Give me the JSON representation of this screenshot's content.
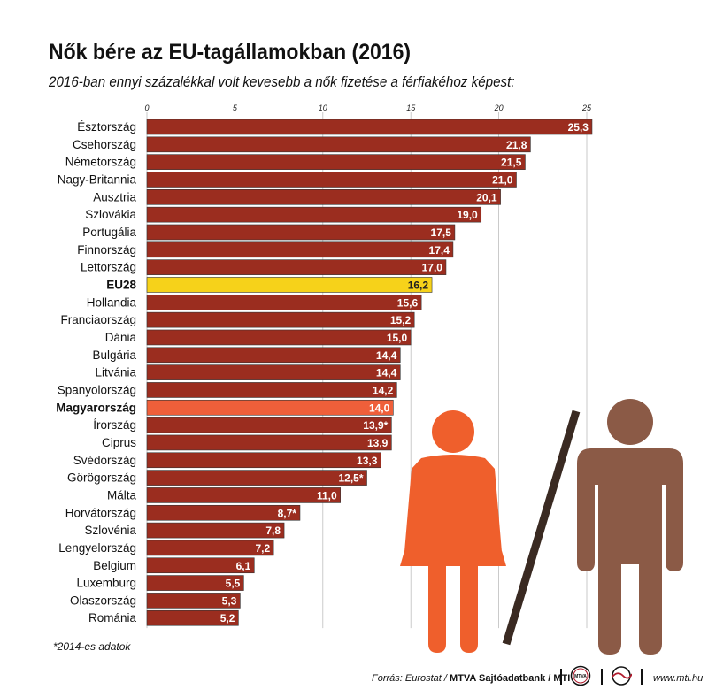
{
  "title": "Nők bére az EU-tagállamokban (2016)",
  "subtitle": "2016-ban ennyi százalékkal volt kevesebb a nők fizetése a férfiakéhoz képest:",
  "footnote": "*2014-es adatok",
  "footer": {
    "source_prefix": "Forrás: Eurostat / ",
    "source_bold": "MTVA Sajtóadatbank / MTI",
    "logo1_text": "MTVA",
    "website": "www.mti.hu"
  },
  "colors": {
    "bar": "#9b2d1f",
    "eu28": "#f6d21a",
    "hungary": "#ef5f3a",
    "woman": "#ef5f2c",
    "man": "#8b5a46",
    "divider": "#3a2a22"
  },
  "icons": [
    "woman-icon",
    "man-icon"
  ],
  "chart_data": {
    "type": "bar",
    "orientation": "horizontal",
    "title": "Nők bére az EU-tagállamokban (2016)",
    "subtitle": "2016-ban ennyi százalékkal volt kevesebb a nők fizetése a férfiakéhoz képest:",
    "xlim": [
      0,
      25
    ],
    "xticks": [
      0,
      5,
      10,
      15,
      20,
      25
    ],
    "grid": true,
    "categories": [
      "Észtország",
      "Csehország",
      "Németország",
      "Nagy-Britannia",
      "Ausztria",
      "Szlovákia",
      "Portugália",
      "Finnország",
      "Lettország",
      "EU28",
      "Hollandia",
      "Franciaország",
      "Dánia",
      "Bulgária",
      "Litvánia",
      "Spanyolország",
      "Magyarország",
      "Írország",
      "Ciprus",
      "Svédország",
      "Görögország",
      "Málta",
      "Horvátország",
      "Szlovénia",
      "Lengyelország",
      "Belgium",
      "Luxemburg",
      "Olaszország",
      "Románia"
    ],
    "values": [
      25.3,
      21.8,
      21.5,
      21.0,
      20.1,
      19.0,
      17.5,
      17.4,
      17.0,
      16.2,
      15.6,
      15.2,
      15.0,
      14.4,
      14.4,
      14.2,
      14.0,
      13.9,
      13.9,
      13.3,
      12.5,
      11.0,
      8.7,
      7.8,
      7.2,
      6.1,
      5.5,
      5.3,
      5.2
    ],
    "labels": [
      "25,3",
      "21,8",
      "21,5",
      "21,0",
      "20,1",
      "19,0",
      "17,5",
      "17,4",
      "17,0",
      "16,2",
      "15,6",
      "15,2",
      "15,0",
      "14,4",
      "14,4",
      "14,2",
      "14,0",
      "13,9*",
      "13,9",
      "13,3",
      "12,5*",
      "11,0",
      "8,7*",
      "7,8",
      "7,2",
      "6,1",
      "5,5",
      "5,3",
      "5,2"
    ],
    "highlight": {
      "EU28": "eu28",
      "Magyarország": "hungary"
    },
    "bold_categories": [
      "EU28",
      "Magyarország"
    ]
  }
}
